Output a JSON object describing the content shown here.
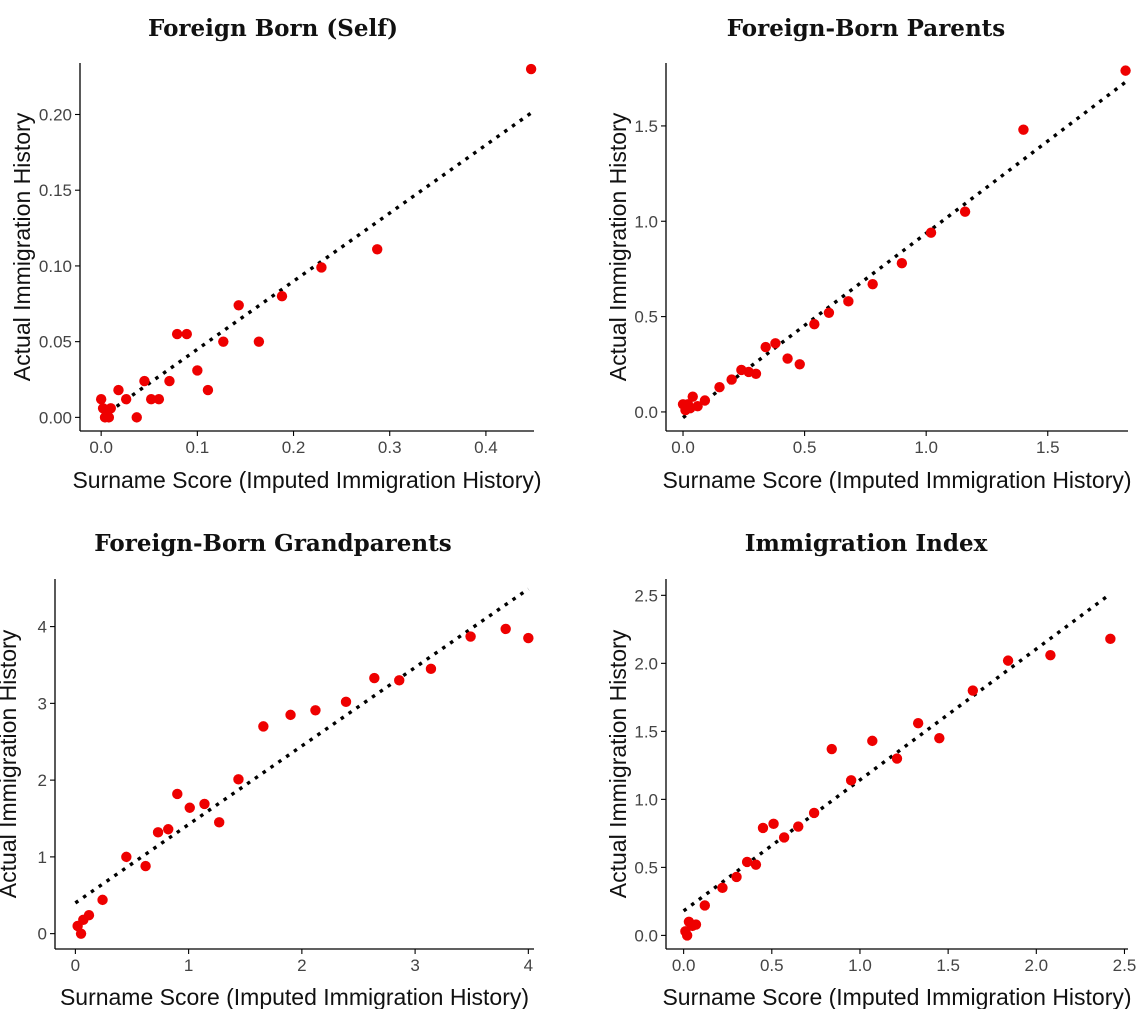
{
  "chart_data": [
    {
      "type": "scatter",
      "title": "Foreign Born (Self)",
      "xlabel": "Surname Score (Imputed Immigration History)",
      "ylabel": "Actual Immigration History",
      "xlim": [
        -0.022,
        0.45
      ],
      "ylim": [
        -0.009,
        0.234
      ],
      "xticks": [
        0.0,
        0.1,
        0.2,
        0.3,
        0.4
      ],
      "xtick_labels": [
        "0.0",
        "0.1",
        "0.2",
        "0.3",
        "0.4"
      ],
      "yticks": [
        0.0,
        0.05,
        0.1,
        0.15,
        0.2
      ],
      "ytick_labels": [
        "0.00",
        "0.05",
        "0.10",
        "0.15",
        "0.20"
      ],
      "fit_line": {
        "x": [
          0.0,
          0.447
        ],
        "y": [
          0.0,
          0.201
        ]
      },
      "points": [
        {
          "x": 0.0,
          "y": 0.012
        },
        {
          "x": 0.002,
          "y": 0.006
        },
        {
          "x": 0.004,
          "y": 0.0
        },
        {
          "x": 0.006,
          "y": 0.003
        },
        {
          "x": 0.008,
          "y": 0.0
        },
        {
          "x": 0.01,
          "y": 0.006
        },
        {
          "x": 0.018,
          "y": 0.018
        },
        {
          "x": 0.026,
          "y": 0.012
        },
        {
          "x": 0.037,
          "y": 0.0
        },
        {
          "x": 0.045,
          "y": 0.024
        },
        {
          "x": 0.052,
          "y": 0.012
        },
        {
          "x": 0.06,
          "y": 0.012
        },
        {
          "x": 0.071,
          "y": 0.024
        },
        {
          "x": 0.079,
          "y": 0.055
        },
        {
          "x": 0.089,
          "y": 0.055
        },
        {
          "x": 0.1,
          "y": 0.031
        },
        {
          "x": 0.111,
          "y": 0.018
        },
        {
          "x": 0.127,
          "y": 0.05
        },
        {
          "x": 0.143,
          "y": 0.074
        },
        {
          "x": 0.164,
          "y": 0.05
        },
        {
          "x": 0.188,
          "y": 0.08
        },
        {
          "x": 0.229,
          "y": 0.099
        },
        {
          "x": 0.287,
          "y": 0.111
        },
        {
          "x": 0.447,
          "y": 0.23
        }
      ]
    },
    {
      "type": "scatter",
      "title": "Foreign-Born Parents",
      "xlabel": "Surname Score (Imputed Immigration History)",
      "ylabel": "Actual Immigration History",
      "xlim": [
        -0.07,
        1.83
      ],
      "ylim": [
        -0.1,
        1.83
      ],
      "xticks": [
        0.0,
        0.5,
        1.0,
        1.5
      ],
      "xtick_labels": [
        "0.0",
        "0.5",
        "1.0",
        "1.5"
      ],
      "yticks": [
        0.0,
        0.5,
        1.0,
        1.5
      ],
      "ytick_labels": [
        "0.0",
        "0.5",
        "1.0",
        "1.5"
      ],
      "fit_line": {
        "x": [
          0.0,
          1.82
        ],
        "y": [
          -0.03,
          1.73
        ]
      },
      "points": [
        {
          "x": 0.0,
          "y": 0.04
        },
        {
          "x": 0.01,
          "y": 0.01
        },
        {
          "x": 0.02,
          "y": 0.04
        },
        {
          "x": 0.03,
          "y": 0.02
        },
        {
          "x": 0.04,
          "y": 0.08
        },
        {
          "x": 0.06,
          "y": 0.03
        },
        {
          "x": 0.09,
          "y": 0.06
        },
        {
          "x": 0.15,
          "y": 0.13
        },
        {
          "x": 0.2,
          "y": 0.17
        },
        {
          "x": 0.24,
          "y": 0.22
        },
        {
          "x": 0.27,
          "y": 0.21
        },
        {
          "x": 0.3,
          "y": 0.2
        },
        {
          "x": 0.34,
          "y": 0.34
        },
        {
          "x": 0.38,
          "y": 0.36
        },
        {
          "x": 0.43,
          "y": 0.28
        },
        {
          "x": 0.48,
          "y": 0.25
        },
        {
          "x": 0.54,
          "y": 0.46
        },
        {
          "x": 0.6,
          "y": 0.52
        },
        {
          "x": 0.68,
          "y": 0.58
        },
        {
          "x": 0.78,
          "y": 0.67
        },
        {
          "x": 0.9,
          "y": 0.78
        },
        {
          "x": 1.02,
          "y": 0.94
        },
        {
          "x": 1.16,
          "y": 1.05
        },
        {
          "x": 1.4,
          "y": 1.48
        },
        {
          "x": 1.82,
          "y": 1.79
        }
      ]
    },
    {
      "type": "scatter",
      "title": "Foreign-Born Grandparents",
      "xlabel": "Surname Score (Imputed Immigration History)",
      "ylabel": "Actual Immigration History",
      "xlim": [
        -0.18,
        4.05
      ],
      "ylim": [
        -0.2,
        4.62
      ],
      "xticks": [
        0,
        1,
        2,
        3,
        4
      ],
      "xtick_labels": [
        "0",
        "1",
        "2",
        "3",
        "4"
      ],
      "yticks": [
        0,
        1,
        2,
        3,
        4
      ],
      "ytick_labels": [
        "0",
        "1",
        "2",
        "3",
        "4"
      ],
      "fit_line": {
        "x": [
          0.0,
          4.0
        ],
        "y": [
          0.4,
          4.49
        ]
      },
      "points": [
        {
          "x": 0.02,
          "y": 0.1
        },
        {
          "x": 0.05,
          "y": 0.0
        },
        {
          "x": 0.07,
          "y": 0.18
        },
        {
          "x": 0.12,
          "y": 0.24
        },
        {
          "x": 0.24,
          "y": 0.44
        },
        {
          "x": 0.45,
          "y": 1.0
        },
        {
          "x": 0.62,
          "y": 0.88
        },
        {
          "x": 0.73,
          "y": 1.32
        },
        {
          "x": 0.82,
          "y": 1.36
        },
        {
          "x": 0.9,
          "y": 1.82
        },
        {
          "x": 1.01,
          "y": 1.64
        },
        {
          "x": 1.14,
          "y": 1.69
        },
        {
          "x": 1.27,
          "y": 1.45
        },
        {
          "x": 1.44,
          "y": 2.01
        },
        {
          "x": 1.66,
          "y": 2.7
        },
        {
          "x": 1.9,
          "y": 2.85
        },
        {
          "x": 2.12,
          "y": 2.91
        },
        {
          "x": 2.39,
          "y": 3.02
        },
        {
          "x": 2.64,
          "y": 3.33
        },
        {
          "x": 2.86,
          "y": 3.3
        },
        {
          "x": 3.14,
          "y": 3.45
        },
        {
          "x": 3.49,
          "y": 3.87
        },
        {
          "x": 3.8,
          "y": 3.97
        },
        {
          "x": 4.0,
          "y": 3.85
        }
      ]
    },
    {
      "type": "scatter",
      "title": "Immigration Index",
      "xlabel": "Surname Score (Imputed Immigration History)",
      "ylabel": "Actual Immigration History",
      "xlim": [
        -0.1,
        2.52
      ],
      "ylim": [
        -0.1,
        2.62
      ],
      "xticks": [
        0.0,
        0.5,
        1.0,
        1.5,
        2.0,
        2.5
      ],
      "xtick_labels": [
        "0.0",
        "0.5",
        "1.0",
        "1.5",
        "2.0",
        "2.5"
      ],
      "yticks": [
        0.0,
        0.5,
        1.0,
        1.5,
        2.0,
        2.5
      ],
      "ytick_labels": [
        "0.0",
        "0.5",
        "1.0",
        "1.5",
        "2.0",
        "2.5"
      ],
      "fit_line": {
        "x": [
          0.0,
          2.42
        ],
        "y": [
          0.18,
          2.51
        ]
      },
      "points": [
        {
          "x": 0.01,
          "y": 0.03
        },
        {
          "x": 0.02,
          "y": 0.0
        },
        {
          "x": 0.03,
          "y": 0.1
        },
        {
          "x": 0.05,
          "y": 0.07
        },
        {
          "x": 0.07,
          "y": 0.08
        },
        {
          "x": 0.12,
          "y": 0.22
        },
        {
          "x": 0.22,
          "y": 0.35
        },
        {
          "x": 0.3,
          "y": 0.43
        },
        {
          "x": 0.36,
          "y": 0.54
        },
        {
          "x": 0.41,
          "y": 0.52
        },
        {
          "x": 0.45,
          "y": 0.79
        },
        {
          "x": 0.51,
          "y": 0.82
        },
        {
          "x": 0.57,
          "y": 0.72
        },
        {
          "x": 0.65,
          "y": 0.8
        },
        {
          "x": 0.74,
          "y": 0.9
        },
        {
          "x": 0.84,
          "y": 1.37
        },
        {
          "x": 0.95,
          "y": 1.14
        },
        {
          "x": 1.07,
          "y": 1.43
        },
        {
          "x": 1.21,
          "y": 1.3
        },
        {
          "x": 1.33,
          "y": 1.56
        },
        {
          "x": 1.45,
          "y": 1.45
        },
        {
          "x": 1.64,
          "y": 1.8
        },
        {
          "x": 1.84,
          "y": 2.02
        },
        {
          "x": 2.08,
          "y": 2.06
        },
        {
          "x": 2.42,
          "y": 2.18
        }
      ]
    }
  ]
}
